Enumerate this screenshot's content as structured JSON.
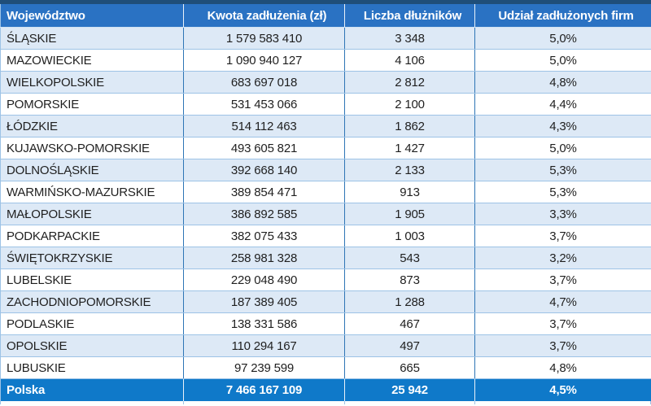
{
  "colors": {
    "top_stripe": "#1f4e79",
    "header_bg": "#2a72c3",
    "header_text": "#ffffff",
    "row_alt_bg": "#dde9f6",
    "row_bg": "#ffffff",
    "grid_vertical": "#2e75b6",
    "grid_horizontal": "#9dc3e6",
    "footer_bg": "#0f79c9",
    "footer_text": "#ffffff",
    "cell_text": "#1f1f1f"
  },
  "chart_data": {
    "type": "table",
    "columns": [
      "Województwo",
      "Kwota zadłużenia (zł)",
      "Liczba dłużników",
      "Udział zadłużonych firm"
    ],
    "rows": [
      [
        "ŚLĄSKIE",
        "1 579 583 410",
        "3 348",
        "5,0%"
      ],
      [
        "MAZOWIECKIE",
        "1 090 940 127",
        "4 106",
        "5,0%"
      ],
      [
        "WIELKOPOLSKIE",
        "683 697 018",
        "2 812",
        "4,8%"
      ],
      [
        "POMORSKIE",
        "531 453 066",
        "2 100",
        "4,4%"
      ],
      [
        "ŁÓDZKIE",
        "514 112 463",
        "1 862",
        "4,3%"
      ],
      [
        "KUJAWSKO-POMORSKIE",
        "493 605 821",
        "1 427",
        "5,0%"
      ],
      [
        "DOLNOŚLĄSKIE",
        "392 668 140",
        "2 133",
        "5,3%"
      ],
      [
        "WARMIŃSKO-MAZURSKIE",
        "389 854 471",
        "913",
        "5,3%"
      ],
      [
        "MAŁOPOLSKIE",
        "386 892 585",
        "1 905",
        "3,3%"
      ],
      [
        "PODKARPACKIE",
        "382 075 433",
        "1 003",
        "3,7%"
      ],
      [
        "ŚWIĘTOKRZYSKIE",
        "258 981 328",
        "543",
        "3,2%"
      ],
      [
        "LUBELSKIE",
        "229 048 490",
        "873",
        "3,7%"
      ],
      [
        "ZACHODNIOPOMORSKIE",
        "187 389 405",
        "1 288",
        "4,7%"
      ],
      [
        "PODLASKIE",
        "138 331 586",
        "467",
        "3,7%"
      ],
      [
        "OPOLSKIE",
        "110 294 167",
        "497",
        "3,7%"
      ],
      [
        "LUBUSKIE",
        "97 239 599",
        "665",
        "4,8%"
      ]
    ],
    "footer": [
      "Polska",
      "7 466 167 109",
      "25 942",
      "4,5%"
    ]
  }
}
